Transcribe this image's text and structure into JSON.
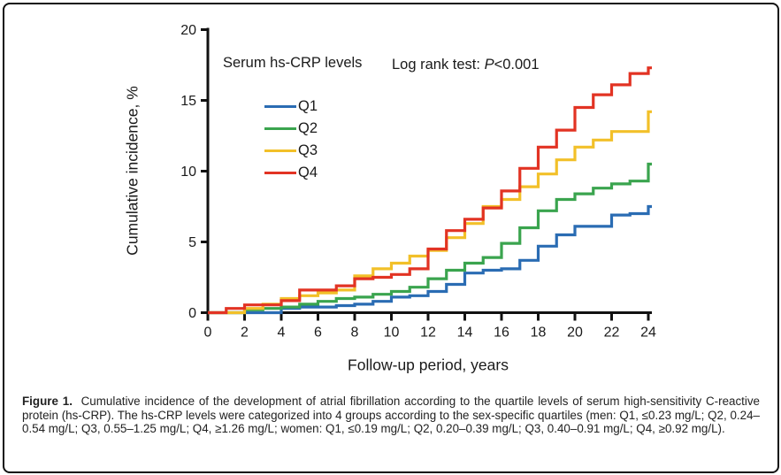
{
  "figure": {
    "caption_label": "Figure 1.",
    "caption_text": "Cumulative incidence of the development of atrial fibrillation according to the quartile levels of serum high-sensitivity C-reactive protein (hs-CRP). The hs-CRP levels were categorized into 4 groups according to the sex-specific quartiles (men: Q1, ≤0.23 mg/L; Q2, 0.24–0.54 mg/L; Q3, 0.55–1.25 mg/L; Q4, ≥1.26 mg/L; women: Q1, ≤0.19 mg/L; Q2, 0.20–0.39 mg/L; Q3, 0.40–0.91 mg/L; Q4, ≥0.92 mg/L)."
  },
  "legend": {
    "title": "Serum hs-CRP levels",
    "entries": [
      {
        "label": "Q1",
        "color": "#2a6cb3"
      },
      {
        "label": "Q2",
        "color": "#3aa44e"
      },
      {
        "label": "Q3",
        "color": "#f2c029"
      },
      {
        "label": "Q4",
        "color": "#e23323"
      }
    ]
  },
  "annotation": {
    "prefix": "Log rank test: ",
    "stat_italic": "P",
    "value": "<0.001"
  },
  "chart_data": {
    "type": "line",
    "step": true,
    "title": "",
    "xlabel": "Follow-up period, years",
    "ylabel": "Cumulative incidence, %",
    "xlim": [
      0,
      24
    ],
    "ylim": [
      0,
      20
    ],
    "x_ticks": [
      0,
      2,
      4,
      6,
      8,
      10,
      12,
      14,
      16,
      18,
      20,
      22,
      24
    ],
    "y_ticks": [
      0,
      5,
      10,
      15,
      20
    ],
    "grid": false,
    "legend_position": "upper-left-inside",
    "x": [
      0,
      1,
      2,
      3,
      4,
      5,
      6,
      7,
      8,
      9,
      10,
      11,
      12,
      13,
      14,
      15,
      16,
      17,
      18,
      19,
      20,
      21,
      22,
      23,
      24
    ],
    "series": [
      {
        "name": "Q1",
        "color": "#2a6cb3",
        "values": [
          0,
          0,
          0,
          0,
          0.3,
          0.4,
          0.4,
          0.5,
          0.6,
          0.8,
          1.1,
          1.2,
          1.5,
          2.0,
          2.8,
          3.0,
          3.1,
          3.7,
          4.7,
          5.5,
          6.1,
          6.1,
          6.9,
          7.0,
          7.5
        ]
      },
      {
        "name": "Q2",
        "color": "#3aa44e",
        "values": [
          0,
          0,
          0.2,
          0.3,
          0.4,
          0.6,
          0.8,
          1.0,
          1.1,
          1.3,
          1.5,
          1.8,
          2.4,
          3.0,
          3.5,
          3.9,
          4.9,
          6.0,
          7.2,
          8.0,
          8.4,
          8.8,
          9.1,
          9.3,
          10.5
        ]
      },
      {
        "name": "Q3",
        "color": "#f2c029",
        "values": [
          0,
          0,
          0.3,
          0.6,
          1.0,
          1.2,
          1.4,
          1.6,
          2.6,
          3.1,
          3.5,
          4.0,
          4.4,
          5.3,
          6.3,
          7.5,
          8.0,
          8.9,
          9.8,
          10.8,
          11.7,
          12.2,
          12.8,
          12.8,
          14.2
        ]
      },
      {
        "name": "Q4",
        "color": "#e23323",
        "values": [
          0,
          0.3,
          0.55,
          0.55,
          0.85,
          1.6,
          1.6,
          1.9,
          2.4,
          2.5,
          2.7,
          3.1,
          4.5,
          5.8,
          6.6,
          7.4,
          8.6,
          10.2,
          11.7,
          12.9,
          14.5,
          15.4,
          16.1,
          16.9,
          17.3
        ]
      }
    ]
  }
}
